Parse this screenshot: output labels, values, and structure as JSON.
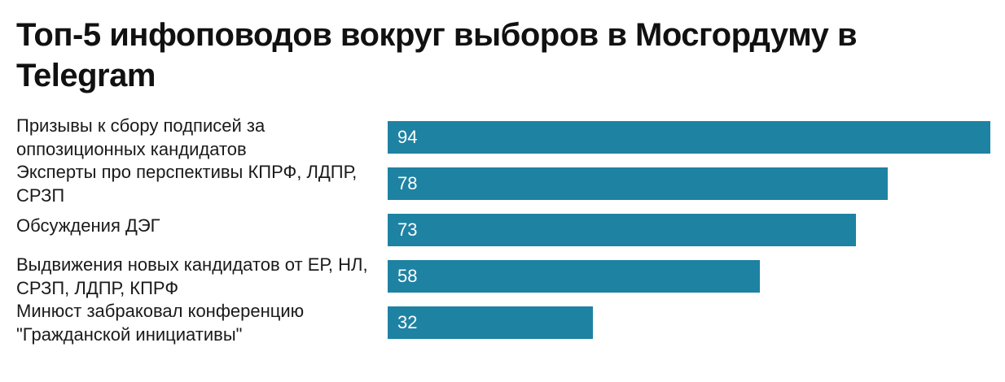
{
  "header": {
    "title": "Топ-5 инфоповодов вокруг выборов в Мосгордуму в Telegram"
  },
  "colors": {
    "bar": "#1e82a2",
    "value_text": "#ffffff"
  },
  "chart_data": {
    "type": "bar",
    "orientation": "horizontal",
    "title": "Топ-5 инфоповодов вокруг выборов в Мосгордуму в Telegram",
    "xlabel": "",
    "ylabel": "",
    "xlim": [
      0,
      94
    ],
    "grid": false,
    "legend": "none",
    "categories": [
      "Призывы к сбору подписей за оппозиционных кандидатов",
      "Эксперты про перспективы КПРФ, ЛДПР, СРЗП",
      "Обсуждения ДЭГ",
      "Выдвижения новых кандидатов от ЕР, НЛ, СРЗП, ЛДПР, КПРФ",
      "Минюст забраковал конференцию \"Гражданской инициативы\""
    ],
    "values": [
      94,
      78,
      73,
      58,
      32
    ]
  }
}
